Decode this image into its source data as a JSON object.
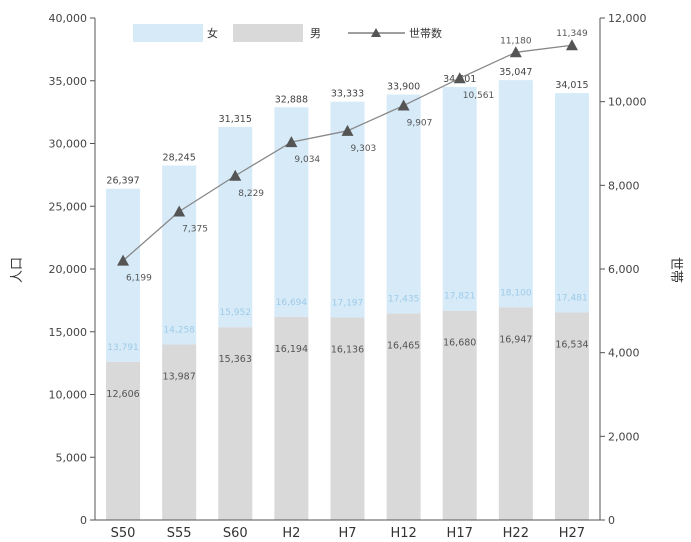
{
  "chart_data": {
    "type": "bar",
    "stacked": true,
    "categories": [
      "S50",
      "S55",
      "S60",
      "H2",
      "H7",
      "H12",
      "H17",
      "H22",
      "H27"
    ],
    "series": [
      {
        "name": "男",
        "values": [
          12606,
          13987,
          15363,
          16194,
          16136,
          16465,
          16680,
          16947,
          16534
        ],
        "color": "#d9d9d9"
      },
      {
        "name": "女",
        "values": [
          13791,
          14258,
          15952,
          16694,
          17197,
          17435,
          17821,
          18100,
          17481
        ],
        "color": "#d6eaf8"
      }
    ],
    "total_labels": [
      "26,397",
      "28,245",
      "31,315",
      "32,888",
      "33,333",
      "33,900",
      "34,501",
      "35,047",
      "34,015"
    ],
    "male_labels": [
      "12,606",
      "13,987",
      "15,363",
      "16,194",
      "16,136",
      "16,465",
      "16,680",
      "16,947",
      "16,534"
    ],
    "female_labels": [
      "13,791",
      "14,258",
      "15,952",
      "16,694",
      "17,197",
      "17,435",
      "17,821",
      "18,100",
      "17,481"
    ],
    "households": {
      "name": "世帯数",
      "values": [
        6199,
        7375,
        8229,
        9034,
        9303,
        9907,
        10561,
        11180,
        11349
      ],
      "labels": [
        "6,199",
        "7,375",
        "8,229",
        "9,034",
        "9,303",
        "9,907",
        "10,561",
        "11,180",
        "11,349"
      ],
      "color": "#555555"
    },
    "ylabel_left": "人口",
    "ylabel_right": "世帯",
    "ylim_left": [
      0,
      40000
    ],
    "ylim_right": [
      0,
      12000
    ],
    "yticks_left": [
      "0",
      "5,000",
      "10,000",
      "15,000",
      "20,000",
      "25,000",
      "30,000",
      "35,000",
      "40,000"
    ],
    "yticks_right": [
      "0",
      "2,000",
      "4,000",
      "6,000",
      "8,000",
      "10,000",
      "12,000"
    ],
    "legend": {
      "female": "女",
      "male": "男",
      "households": "世帯数"
    },
    "legend_position": "top",
    "grid": false
  }
}
